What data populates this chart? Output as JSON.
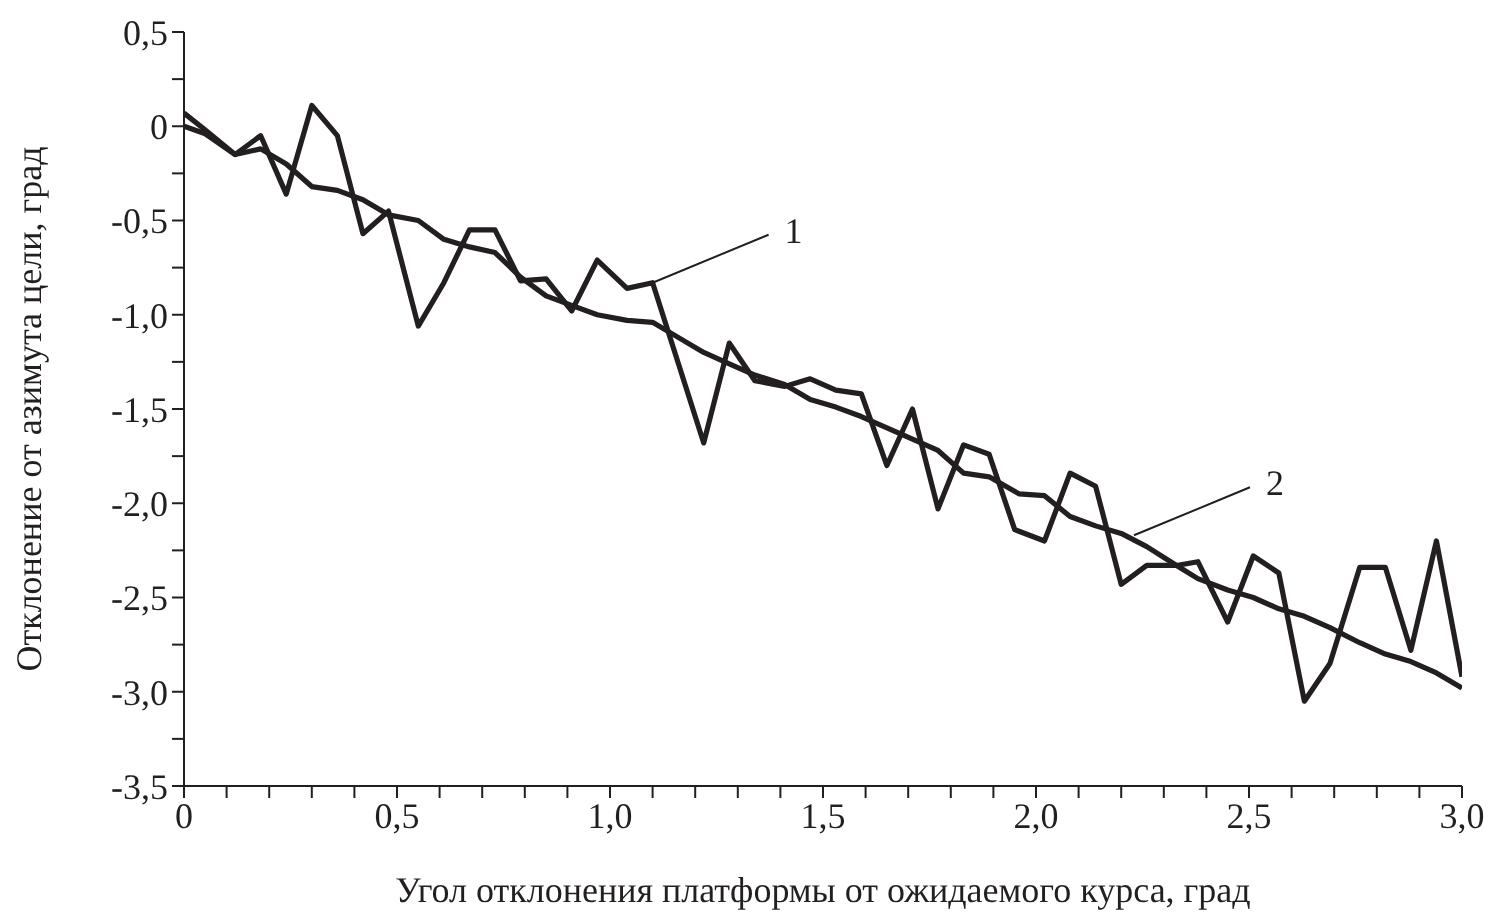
{
  "chart_data": {
    "type": "line",
    "xlabel": "Угол отклонения платформы от ожидаемого курса, град",
    "ylabel": "Отклонение от азимута цели, град",
    "xlim": [
      0,
      3
    ],
    "ylim": [
      -3.5,
      0.5
    ],
    "xticks": [
      0,
      {
        "value": 0.1,
        "label": null
      },
      {
        "value": 0.2,
        "label": null
      },
      {
        "value": 0.3,
        "label": null
      },
      {
        "value": 0.4,
        "label": null
      },
      {
        "value": 0.5,
        "label": "0,5"
      },
      {
        "value": 0.6,
        "label": null
      },
      {
        "value": 0.7,
        "label": null
      },
      {
        "value": 0.8,
        "label": null
      },
      {
        "value": 0.9,
        "label": null
      },
      {
        "value": 1,
        "label": "1,0"
      },
      {
        "value": 1.1,
        "label": null
      },
      {
        "value": 1.2,
        "label": null
      },
      {
        "value": 1.3,
        "label": null
      },
      {
        "value": 1.4,
        "label": null
      },
      {
        "value": 1.5,
        "label": "1,5"
      },
      {
        "value": 1.6,
        "label": null
      },
      {
        "value": 1.7,
        "label": null
      },
      {
        "value": 1.8,
        "label": null
      },
      {
        "value": 1.9,
        "label": null
      },
      {
        "value": 2,
        "label": "2,0"
      },
      {
        "value": 2.1,
        "label": null
      },
      {
        "value": 2.2,
        "label": null
      },
      {
        "value": 2.3,
        "label": null
      },
      {
        "value": 2.4,
        "label": null
      },
      {
        "value": 2.5,
        "label": "2,5"
      },
      {
        "value": 2.6,
        "label": null
      },
      {
        "value": 2.7,
        "label": null
      },
      {
        "value": 2.8,
        "label": null
      },
      {
        "value": 2.9,
        "label": null
      },
      {
        "value": 3,
        "label": "3,0"
      }
    ],
    "yticks": [
      {
        "value": 0.5,
        "label": "0,5"
      },
      {
        "value": 0.25,
        "label": null
      },
      0,
      {
        "value": -0.25,
        "label": null
      },
      {
        "value": -0.5,
        "label": "-0,5"
      },
      {
        "value": -0.75,
        "label": null
      },
      {
        "value": -1,
        "label": "-1,0"
      },
      {
        "value": -1.25,
        "label": null
      },
      {
        "value": -1.5,
        "label": "-1,5"
      },
      {
        "value": -1.75,
        "label": null
      },
      {
        "value": -2,
        "label": "-2,0"
      },
      {
        "value": -2.25,
        "label": null
      },
      {
        "value": -2.5,
        "label": "-2,5"
      },
      {
        "value": -2.75,
        "label": null
      },
      {
        "value": -3,
        "label": "-3,0"
      },
      {
        "value": -3.25,
        "label": null
      },
      {
        "value": -3.5,
        "label": "-3,5"
      }
    ],
    "grid": false,
    "legend": false,
    "marker": "none",
    "line_style": "solid",
    "series": [
      {
        "color": "#231f20",
        "x": [
          0,
          0.05,
          0.12,
          0.18,
          0.24,
          0.3,
          0.36,
          0.42,
          0.48,
          0.55,
          0.61,
          0.67,
          0.73,
          0.79,
          0.85,
          0.91,
          0.97,
          1.04,
          1.1,
          1.22,
          1.28,
          1.34,
          1.41,
          1.47,
          1.53,
          1.59,
          1.65,
          1.71,
          1.77,
          1.83,
          1.89,
          1.95,
          2.02,
          2.08,
          2.14,
          2.2,
          2.26,
          2.33,
          2.38,
          2.45,
          2.51,
          2.57,
          2.63,
          2.69,
          2.76,
          2.82,
          2.88,
          2.94,
          3
        ],
        "values": [
          0.07,
          -0.02,
          -0.15,
          -0.05,
          -0.36,
          0.11,
          -0.05,
          -0.57,
          -0.45,
          -1.06,
          -0.83,
          -0.55,
          -0.55,
          -0.82,
          -0.81,
          -0.98,
          -0.71,
          -0.86,
          -0.83,
          -1.68,
          -1.15,
          -1.35,
          -1.38,
          -1.34,
          -1.4,
          -1.42,
          -1.8,
          -1.5,
          -2.03,
          -1.69,
          -1.74,
          -2.14,
          -2.2,
          -1.84,
          -1.91,
          -2.43,
          -2.33,
          -2.33,
          -2.31,
          -2.63,
          -2.28,
          -2.37,
          -3.05,
          -2.85,
          -2.34,
          -2.34,
          -2.78,
          -2.2,
          -2.92
        ]
      },
      {
        "color": "#231f20",
        "x": [
          0,
          0.05,
          0.12,
          0.18,
          0.24,
          0.3,
          0.36,
          0.42,
          0.48,
          0.55,
          0.61,
          0.67,
          0.73,
          0.79,
          0.85,
          0.91,
          0.97,
          1.04,
          1.1,
          1.16,
          1.22,
          1.28,
          1.34,
          1.41,
          1.47,
          1.53,
          1.59,
          1.65,
          1.71,
          1.77,
          1.83,
          1.89,
          1.96,
          2.02,
          2.08,
          2.14,
          2.2,
          2.26,
          2.33,
          2.38,
          2.45,
          2.51,
          2.57,
          2.63,
          2.69,
          2.76,
          2.82,
          2.88,
          2.94,
          3
        ],
        "values": [
          0,
          -0.04,
          -0.15,
          -0.12,
          -0.2,
          -0.32,
          -0.34,
          -0.39,
          -0.47,
          -0.5,
          -0.6,
          -0.64,
          -0.67,
          -0.8,
          -0.9,
          -0.95,
          -1,
          -1.03,
          -1.04,
          -1.12,
          -1.2,
          -1.26,
          -1.32,
          -1.37,
          -1.45,
          -1.49,
          -1.54,
          -1.6,
          -1.66,
          -1.72,
          -1.84,
          -1.86,
          -1.95,
          -1.96,
          -2.07,
          -2.12,
          -2.16,
          -2.23,
          -2.33,
          -2.4,
          -2.46,
          -2.5,
          -2.56,
          -2.6,
          -2.66,
          -2.74,
          -2.8,
          -2.84,
          -2.9,
          -2.98
        ]
      }
    ],
    "annotations": [
      {
        "text": "1",
        "x": 1.1,
        "y": -0.83
      },
      {
        "text": "2",
        "x": 2.23,
        "y": -2.17
      }
    ]
  }
}
